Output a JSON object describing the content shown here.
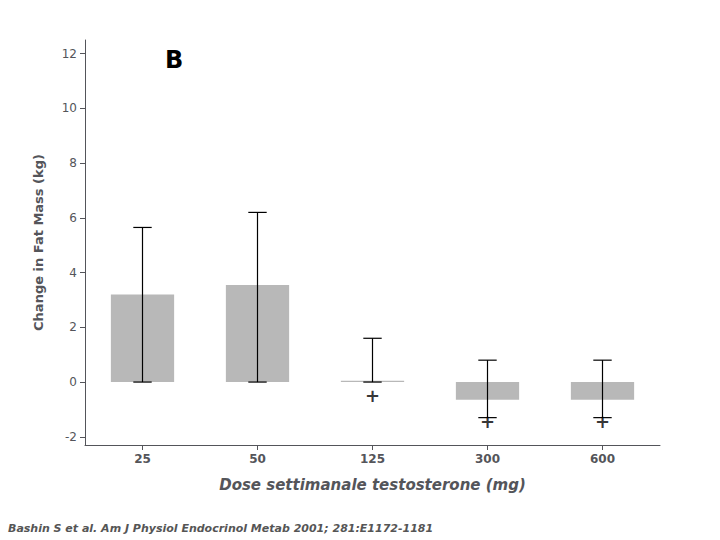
{
  "chart_data": {
    "type": "bar",
    "categories": [
      "25",
      "50",
      "125",
      "300",
      "600"
    ],
    "values": [
      3.2,
      3.55,
      0.05,
      -0.65,
      -0.65
    ],
    "yerr_upper": [
      2.45,
      2.65,
      1.55,
      1.45,
      1.45
    ],
    "yerr_lower": [
      3.2,
      3.55,
      0.05,
      0.65,
      0.65
    ],
    "color": "#b8b8b8",
    "xlabel": "Dose settimanale testosterone (mg)",
    "ylabel": "Change in Fat Mass (kg)",
    "ylim": [
      -2.3,
      12.5
    ],
    "yticks": [
      -2,
      0,
      2,
      4,
      6,
      8,
      10,
      12
    ],
    "grid": false,
    "annotations": [
      {
        "text": "+",
        "x": "125",
        "y": -0.5
      },
      {
        "text": "+",
        "x": "300",
        "y": -1.45
      },
      {
        "text": "+",
        "x": "600",
        "y": -1.45
      },
      {
        "text": "B"
      },
      {
        "text": "Bashin S et al. Am J Physiol Endocrinol Metab 2001; 281:E1172-1181"
      }
    ]
  }
}
